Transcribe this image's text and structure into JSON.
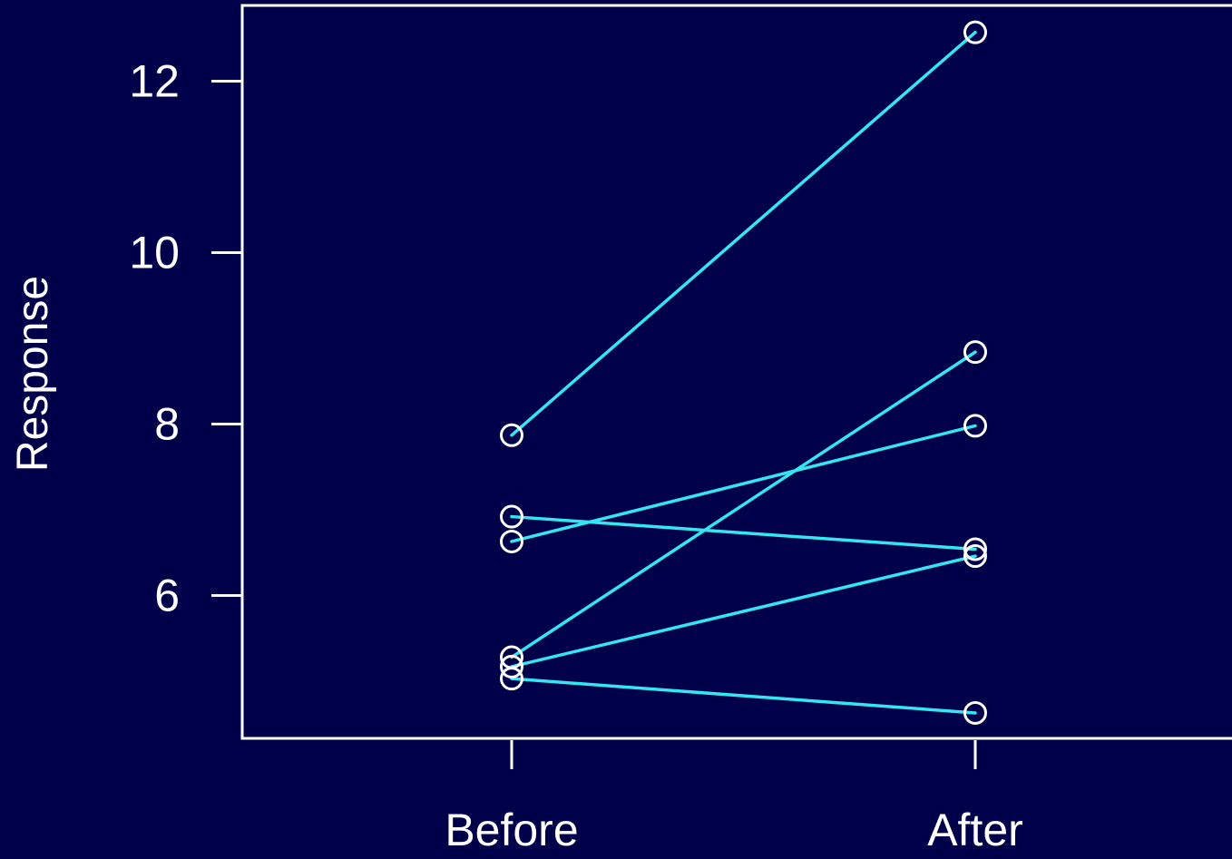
{
  "colors": {
    "background": "#00004a",
    "foreground": "#ffffff",
    "line": "#33e6f0"
  },
  "chart_data": {
    "type": "line",
    "title": "",
    "xlabel": "",
    "ylabel": "Response",
    "categories": [
      "Before",
      "After"
    ],
    "y_ticks": [
      6,
      8,
      10,
      12
    ],
    "y_tick_labels": [
      "6",
      "8",
      "10",
      "12"
    ],
    "ylim": [
      4.4,
      12.9
    ],
    "grid": false,
    "legend": "none",
    "marker": "open-circle",
    "pairs": [
      {
        "before": 7.87,
        "after": 12.57
      },
      {
        "before": 6.92,
        "after": 6.54
      },
      {
        "before": 6.63,
        "after": 7.98
      },
      {
        "before": 5.28,
        "after": 8.84
      },
      {
        "before": 5.17,
        "after": 6.46
      },
      {
        "before": 5.03,
        "after": 4.63
      }
    ]
  }
}
